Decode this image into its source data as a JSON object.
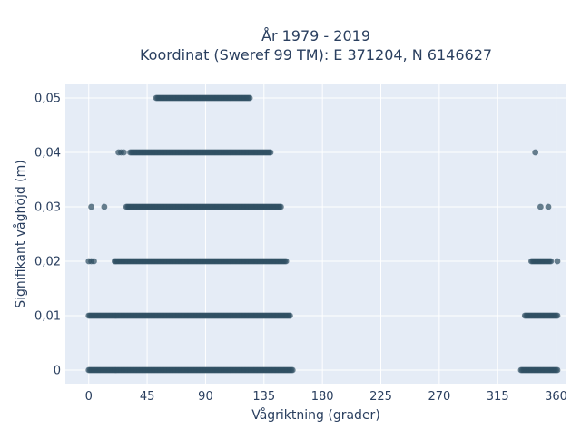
{
  "chart_data": {
    "type": "scatter",
    "title_line1": "År 1979 - 2019",
    "title_line2": "Koordinat (Sweref 99 TM): E 371204, N 6146627",
    "xlabel": "Vågriktning (grader)",
    "ylabel": "Signifikant våghöjd (m)",
    "xlim": [
      -18,
      368
    ],
    "ylim": [
      -0.0025,
      0.0525
    ],
    "x_ticks": [
      0,
      45,
      90,
      135,
      180,
      225,
      270,
      315,
      360
    ],
    "x_tick_labels": [
      "0",
      "45",
      "90",
      "135",
      "180",
      "225",
      "270",
      "315",
      "360"
    ],
    "y_ticks": [
      0,
      0.01,
      0.02,
      0.03,
      0.04,
      0.05
    ],
    "y_tick_labels": [
      "0",
      "0,01",
      "0,02",
      "0,03",
      "0,04",
      "0,05"
    ],
    "grid": true,
    "series": [
      {
        "marker_color": "#2f4f63",
        "clusters": [
          {
            "y": 0.05,
            "x_from": 52,
            "x_to": 124,
            "step": 1
          },
          {
            "y": 0.04,
            "x_from": 23,
            "x_to": 27,
            "step": 2
          },
          {
            "y": 0.04,
            "x_from": 32,
            "x_to": 140,
            "step": 1
          },
          {
            "y": 0.04,
            "x_from": 344,
            "x_to": 344,
            "step": 1
          },
          {
            "y": 0.03,
            "x_from": 2,
            "x_to": 2,
            "step": 1
          },
          {
            "y": 0.03,
            "x_from": 12,
            "x_to": 12,
            "step": 1
          },
          {
            "y": 0.03,
            "x_from": 29,
            "x_to": 148,
            "step": 1
          },
          {
            "y": 0.03,
            "x_from": 348,
            "x_to": 348,
            "step": 1
          },
          {
            "y": 0.03,
            "x_from": 354,
            "x_to": 354,
            "step": 1
          },
          {
            "y": 0.02,
            "x_from": 0,
            "x_to": 4,
            "step": 2
          },
          {
            "y": 0.02,
            "x_from": 20,
            "x_to": 152,
            "step": 1
          },
          {
            "y": 0.02,
            "x_from": 341,
            "x_to": 356,
            "step": 1
          },
          {
            "y": 0.02,
            "x_from": 361,
            "x_to": 361,
            "step": 1
          },
          {
            "y": 0.01,
            "x_from": 0,
            "x_to": 155,
            "step": 1
          },
          {
            "y": 0.01,
            "x_from": 336,
            "x_to": 361,
            "step": 1
          },
          {
            "y": 0,
            "x_from": 0,
            "x_to": 157,
            "step": 1
          },
          {
            "y": 0,
            "x_from": 333,
            "x_to": 361,
            "step": 1
          }
        ]
      }
    ]
  }
}
